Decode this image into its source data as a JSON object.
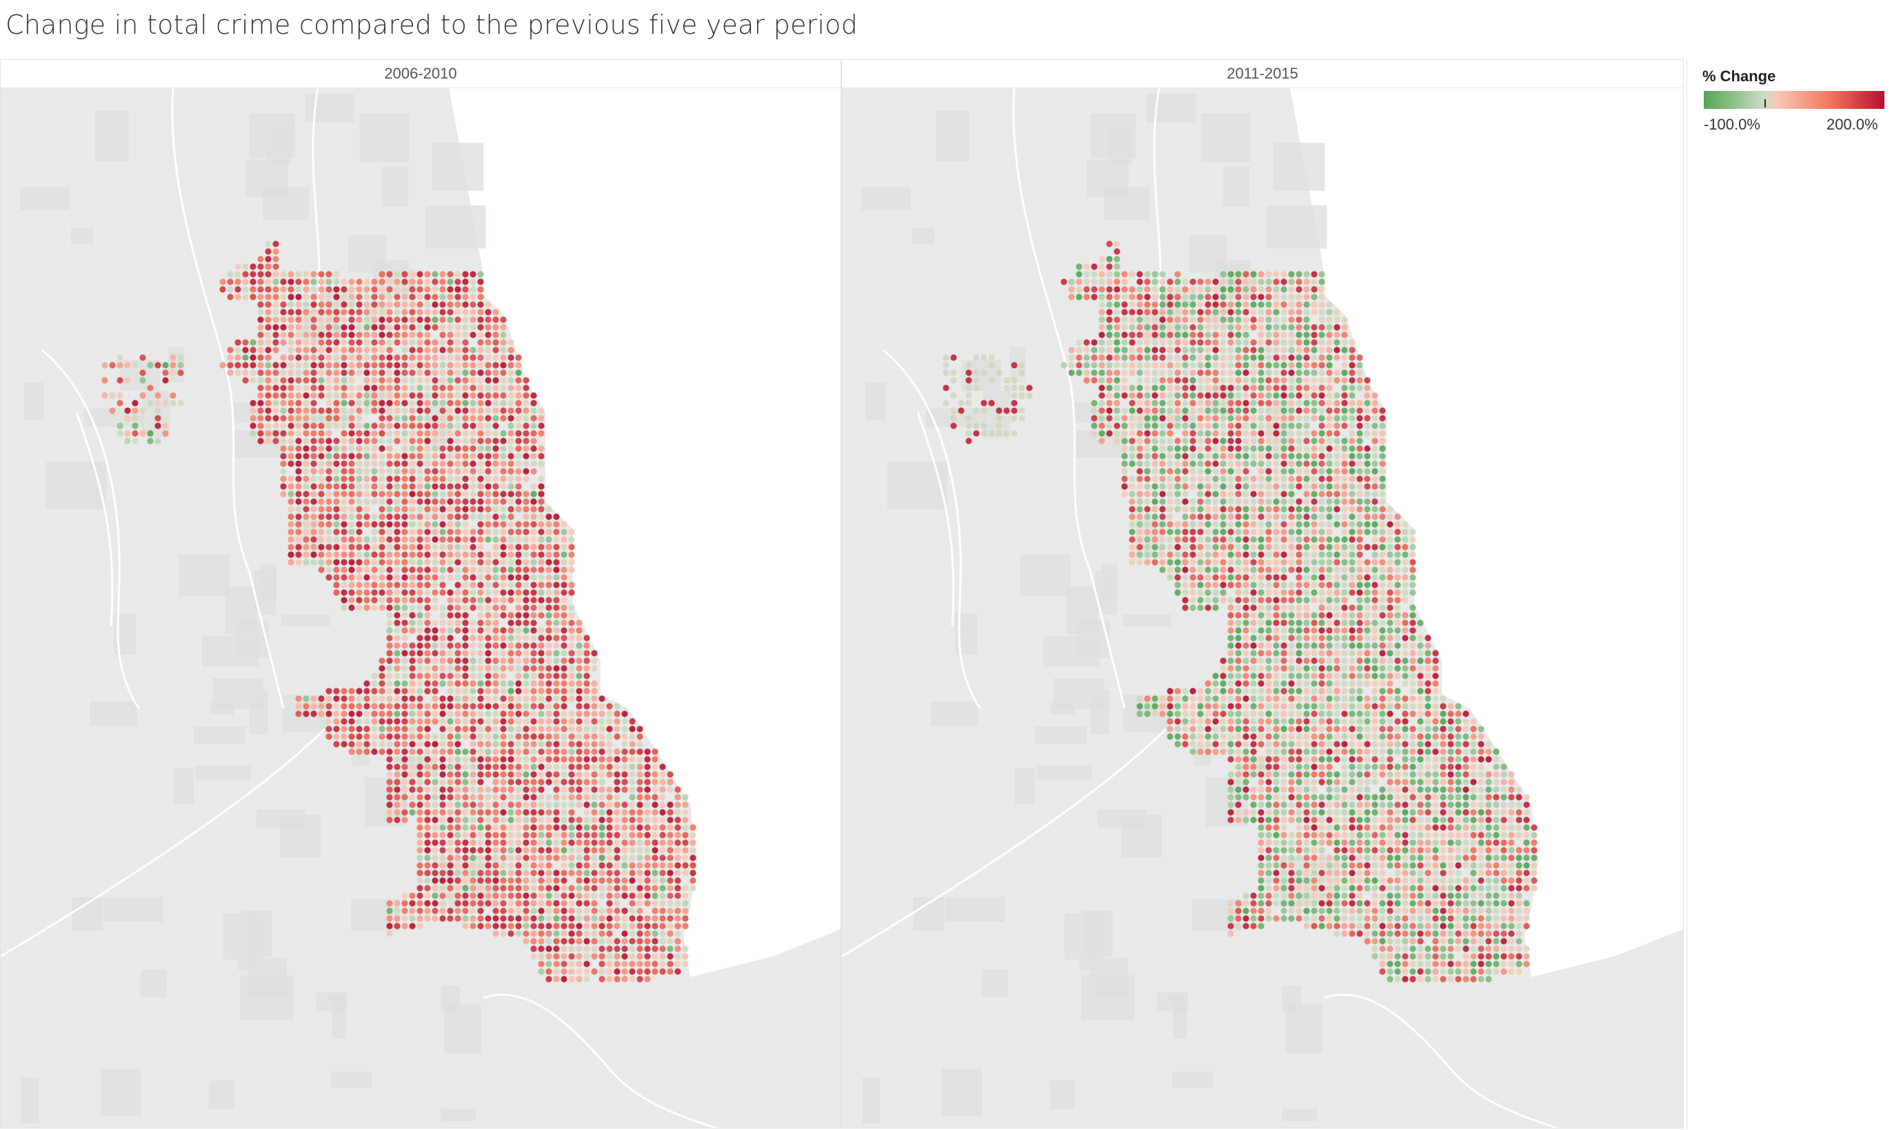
{
  "title": "Change in total crime compared to the previous five year period",
  "panels": [
    {
      "label": "2006-2010"
    },
    {
      "label": "2011-2015"
    }
  ],
  "legend": {
    "title": "% Change",
    "min_label": "-100.0%",
    "max_label": "200.0%",
    "colors": [
      "#53a553",
      "#c9dcc3",
      "#f8c9b8",
      "#f1765e",
      "#b5102e"
    ]
  },
  "colors": {
    "map_land": "#e9e9e9",
    "map_water": "#ffffff",
    "roads": "#ffffff",
    "parks": "#dde0dd"
  }
}
